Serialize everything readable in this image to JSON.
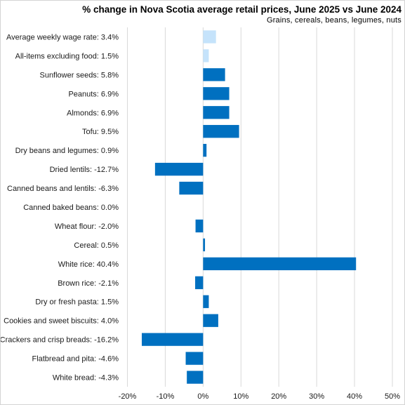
{
  "chart_data": {
    "type": "bar",
    "orientation": "horizontal",
    "title": "% change in Nova Scotia average retail prices, June 2025 vs June 2024",
    "subtitle": "Grains, cereals, beans, legumes, nuts",
    "xlim": [
      -20,
      50
    ],
    "x_ticks": [
      -20,
      -10,
      0,
      10,
      20,
      30,
      40,
      50
    ],
    "x_tick_labels": [
      "-20%",
      "-10%",
      "0%",
      "10%",
      "20%",
      "30%",
      "40%",
      "50%"
    ],
    "grid": "vertical",
    "categories": [
      "Average weekly wage rate: 3.4%",
      "All-items excluding food: 1.5%",
      "Sunflower seeds: 5.8%",
      "Peanuts: 6.9%",
      "Almonds: 6.9%",
      "Tofu: 9.5%",
      "Dry beans and legumes: 0.9%",
      "Dried lentils: -12.7%",
      "Canned beans and lentils: -6.3%",
      "Canned baked beans: 0.0%",
      "Wheat flour: -2.0%",
      "Cereal: 0.5%",
      "White rice: 40.4%",
      "Brown rice: -2.1%",
      "Dry or fresh pasta: 1.5%",
      "Cookies and sweet biscuits: 4.0%",
      "Crackers and crisp breads: -16.2%",
      "Flatbread and pita: -4.6%",
      "White bread: -4.3%"
    ],
    "values": [
      3.4,
      1.5,
      5.8,
      6.9,
      6.9,
      9.5,
      0.9,
      -12.7,
      -6.3,
      0.0,
      -2.0,
      0.5,
      40.4,
      -2.1,
      1.5,
      4.0,
      -16.2,
      -4.6,
      -4.3
    ],
    "highlight": [
      true,
      true,
      false,
      false,
      false,
      false,
      false,
      false,
      false,
      false,
      false,
      false,
      false,
      false,
      false,
      false,
      false,
      false,
      false
    ],
    "colors": {
      "bar": "#0070c0",
      "highlight": "#c5e3fb",
      "grid": "#d9d9d9"
    }
  }
}
